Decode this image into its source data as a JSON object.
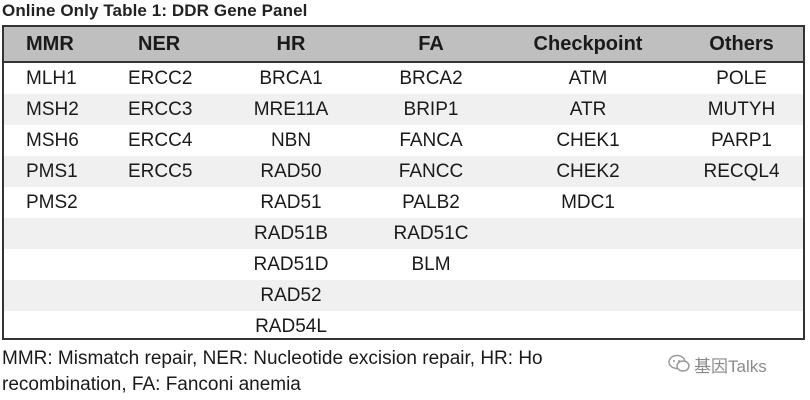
{
  "title": "Online Only Table 1: DDR Gene Panel",
  "table": {
    "headers": [
      "MMR",
      "NER",
      "HR",
      "FA",
      "Checkpoint",
      "Others"
    ],
    "rows": [
      [
        "MLH1",
        "ERCC2",
        "BRCA1",
        "BRCA2",
        "ATM",
        "POLE"
      ],
      [
        "MSH2",
        "ERCC3",
        "MRE11A",
        "BRIP1",
        "ATR",
        "MUTYH"
      ],
      [
        "MSH6",
        "ERCC4",
        "NBN",
        "FANCA",
        "CHEK1",
        "PARP1"
      ],
      [
        "PMS1",
        "ERCC5",
        "RAD50",
        "FANCC",
        "CHEK2",
        "RECQL4"
      ],
      [
        "PMS2",
        "",
        "RAD51",
        "PALB2",
        "MDC1",
        ""
      ],
      [
        "",
        "",
        "RAD51B",
        "RAD51C",
        "",
        ""
      ],
      [
        "",
        "",
        "RAD51D",
        "BLM",
        "",
        ""
      ],
      [
        "",
        "",
        "RAD52",
        "",
        "",
        ""
      ],
      [
        "",
        "",
        "RAD54L",
        "",
        "",
        ""
      ]
    ]
  },
  "footnote": {
    "line1": "MMR: Mismatch repair, NER: Nucleotide excision repair, HR: Ho",
    "line2": "recombination, FA: Fanconi anemia"
  },
  "watermark": {
    "text": "基因Talks",
    "icon": "chat-bubble-icon"
  },
  "colors": {
    "header_bg": "#bfbfbf",
    "row_alt_bg": "#f0f0f0",
    "border": "#333333"
  }
}
